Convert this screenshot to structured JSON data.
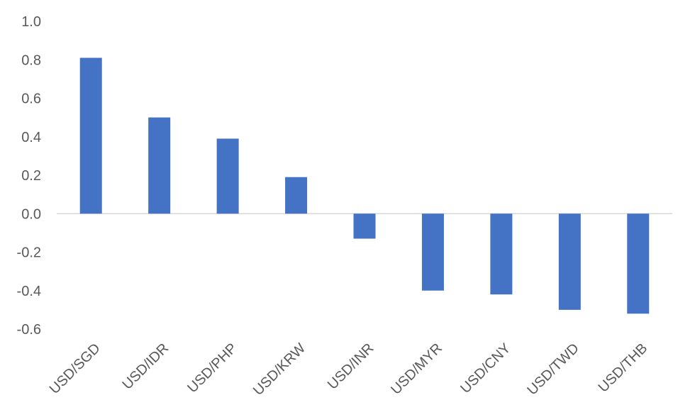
{
  "chart_data": {
    "type": "bar",
    "categories": [
      "USD/SGD",
      "USD/IDR",
      "USD/PHP",
      "USD/KRW",
      "USD/INR",
      "USD/MYR",
      "USD/CNY",
      "USD/TWD",
      "USD/THB"
    ],
    "values": [
      0.81,
      0.5,
      0.39,
      0.19,
      -0.13,
      -0.4,
      -0.42,
      -0.5,
      -0.52
    ],
    "ylim": [
      -0.6,
      1.0
    ],
    "yticks": [
      "1.0",
      "0.8",
      "0.6",
      "0.4",
      "0.2",
      "0.0",
      "-0.2",
      "-0.4",
      "-0.6"
    ],
    "bar_color": "#4472C4",
    "axis_color": "#D9D9D9",
    "label_color": "#595959",
    "grid": false,
    "legend": "none"
  }
}
